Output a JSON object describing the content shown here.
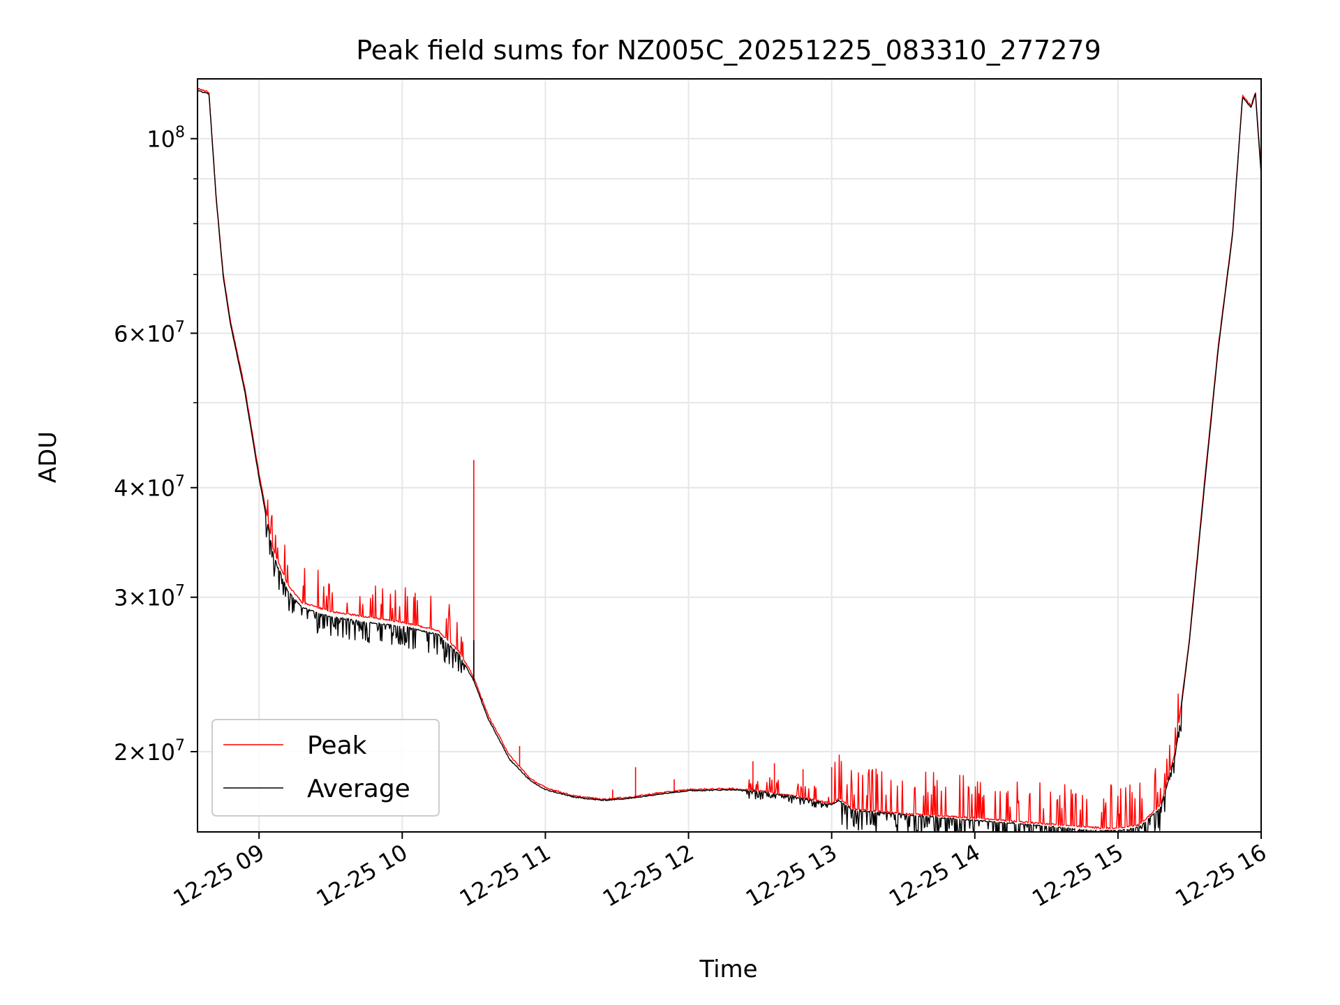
{
  "chart_data": {
    "type": "line",
    "title": "Peak field sums for NZ005C_20251225_083310_277279",
    "xlabel": "Time",
    "ylabel": "ADU",
    "yscale": "log",
    "xlim_hours": [
      8.57,
      16.0
    ],
    "ylim": [
      16200000,
      117000000
    ],
    "grid": true,
    "legend_position": "lower-left",
    "x_ticks": [
      {
        "hour": 9,
        "label": "12-25 09"
      },
      {
        "hour": 10,
        "label": "12-25 10"
      },
      {
        "hour": 11,
        "label": "12-25 11"
      },
      {
        "hour": 12,
        "label": "12-25 12"
      },
      {
        "hour": 13,
        "label": "12-25 13"
      },
      {
        "hour": 14,
        "label": "12-25 14"
      },
      {
        "hour": 15,
        "label": "12-25 15"
      },
      {
        "hour": 16,
        "label": "12-25 16"
      }
    ],
    "y_ticks": [
      {
        "value": 20000000,
        "mantissa": "2",
        "base": "10",
        "exp": "7"
      },
      {
        "value": 30000000,
        "mantissa": "3",
        "base": "10",
        "exp": "7"
      },
      {
        "value": 40000000,
        "mantissa": "4",
        "base": "10",
        "exp": "7"
      },
      {
        "value": 60000000,
        "mantissa": "6",
        "base": "10",
        "exp": "7"
      },
      {
        "value": 100000000,
        "mantissa": "",
        "base": "10",
        "exp": "8"
      }
    ],
    "y_minor_ticks": [
      50000000,
      70000000,
      80000000,
      90000000
    ],
    "series": [
      {
        "name": "Peak",
        "color": "#ff0000",
        "x": [
          8.57,
          8.65,
          8.7,
          8.75,
          8.8,
          8.9,
          9.0,
          9.1,
          9.2,
          9.3,
          9.5,
          9.75,
          10.0,
          10.25,
          10.4,
          10.5,
          10.6,
          10.75,
          10.9,
          11.0,
          11.2,
          11.4,
          11.6,
          11.8,
          12.0,
          12.3,
          12.5,
          12.75,
          13.0,
          13.05,
          13.15,
          13.5,
          14.0,
          14.5,
          14.8,
          15.0,
          15.15,
          15.3,
          15.4,
          15.5,
          15.6,
          15.7,
          15.8,
          15.87,
          15.93,
          15.96,
          16.0
        ],
        "values": [
          114000000,
          113000000,
          86000000,
          70000000,
          62000000,
          52000000,
          41500000,
          34000000,
          31000000,
          29600000,
          28900000,
          28500000,
          28100000,
          27500000,
          26000000,
          24300000,
          22000000,
          19800000,
          18600000,
          18200000,
          17800000,
          17650000,
          17750000,
          17950000,
          18100000,
          18150000,
          18050000,
          17800000,
          17450000,
          17700000,
          17200000,
          17000000,
          16800000,
          16550000,
          16400000,
          16350000,
          16500000,
          17400000,
          20000000,
          27000000,
          40000000,
          58000000,
          78000000,
          112000000,
          109000000,
          113000000,
          92000000
        ]
      },
      {
        "name": "Average",
        "color": "#000000",
        "x": [
          8.57,
          8.65,
          8.7,
          8.75,
          8.8,
          8.9,
          9.0,
          9.1,
          9.2,
          9.3,
          9.5,
          9.75,
          10.0,
          10.25,
          10.4,
          10.5,
          10.6,
          10.75,
          10.9,
          11.0,
          11.2,
          11.4,
          11.6,
          11.8,
          12.0,
          12.3,
          12.5,
          12.75,
          13.0,
          13.05,
          13.15,
          13.5,
          14.0,
          14.5,
          14.8,
          15.0,
          15.15,
          15.3,
          15.4,
          15.5,
          15.6,
          15.7,
          15.8,
          15.87,
          15.93,
          15.96,
          16.0
        ],
        "values": [
          113500000,
          112500000,
          85500000,
          69500000,
          61500000,
          51500000,
          41000000,
          33500000,
          30500000,
          29200000,
          28500000,
          28100000,
          27800000,
          27200000,
          25800000,
          24100000,
          21800000,
          19600000,
          18500000,
          18100000,
          17750000,
          17600000,
          17700000,
          17900000,
          18050000,
          18100000,
          18000000,
          17750000,
          17400000,
          17600000,
          17150000,
          16950000,
          16700000,
          16450000,
          16250000,
          16250000,
          16400000,
          17300000,
          19800000,
          26800000,
          39500000,
          57500000,
          77500000,
          111500000,
          108500000,
          112500000,
          91000000
        ]
      }
    ],
    "spikes": [
      {
        "series": "Peak",
        "hour": 10.5,
        "value": 43000000
      },
      {
        "series": "Average",
        "hour": 10.5,
        "value": 26800000
      },
      {
        "series": "Peak",
        "hour": 10.56,
        "value": 23000000
      },
      {
        "series": "Peak",
        "hour": 10.82,
        "value": 20300000
      },
      {
        "series": "Peak",
        "hour": 11.47,
        "value": 18100000
      },
      {
        "series": "Peak",
        "hour": 11.63,
        "value": 19200000
      },
      {
        "series": "Peak",
        "hour": 11.9,
        "value": 18600000
      },
      {
        "series": "Peak",
        "hour": 12.45,
        "value": 19500000
      },
      {
        "series": "Peak",
        "hour": 12.6,
        "value": 19400000
      },
      {
        "series": "Peak",
        "hour": 12.8,
        "value": 19100000
      },
      {
        "series": "Peak",
        "hour": 13.0,
        "value": 19200000
      }
    ]
  }
}
